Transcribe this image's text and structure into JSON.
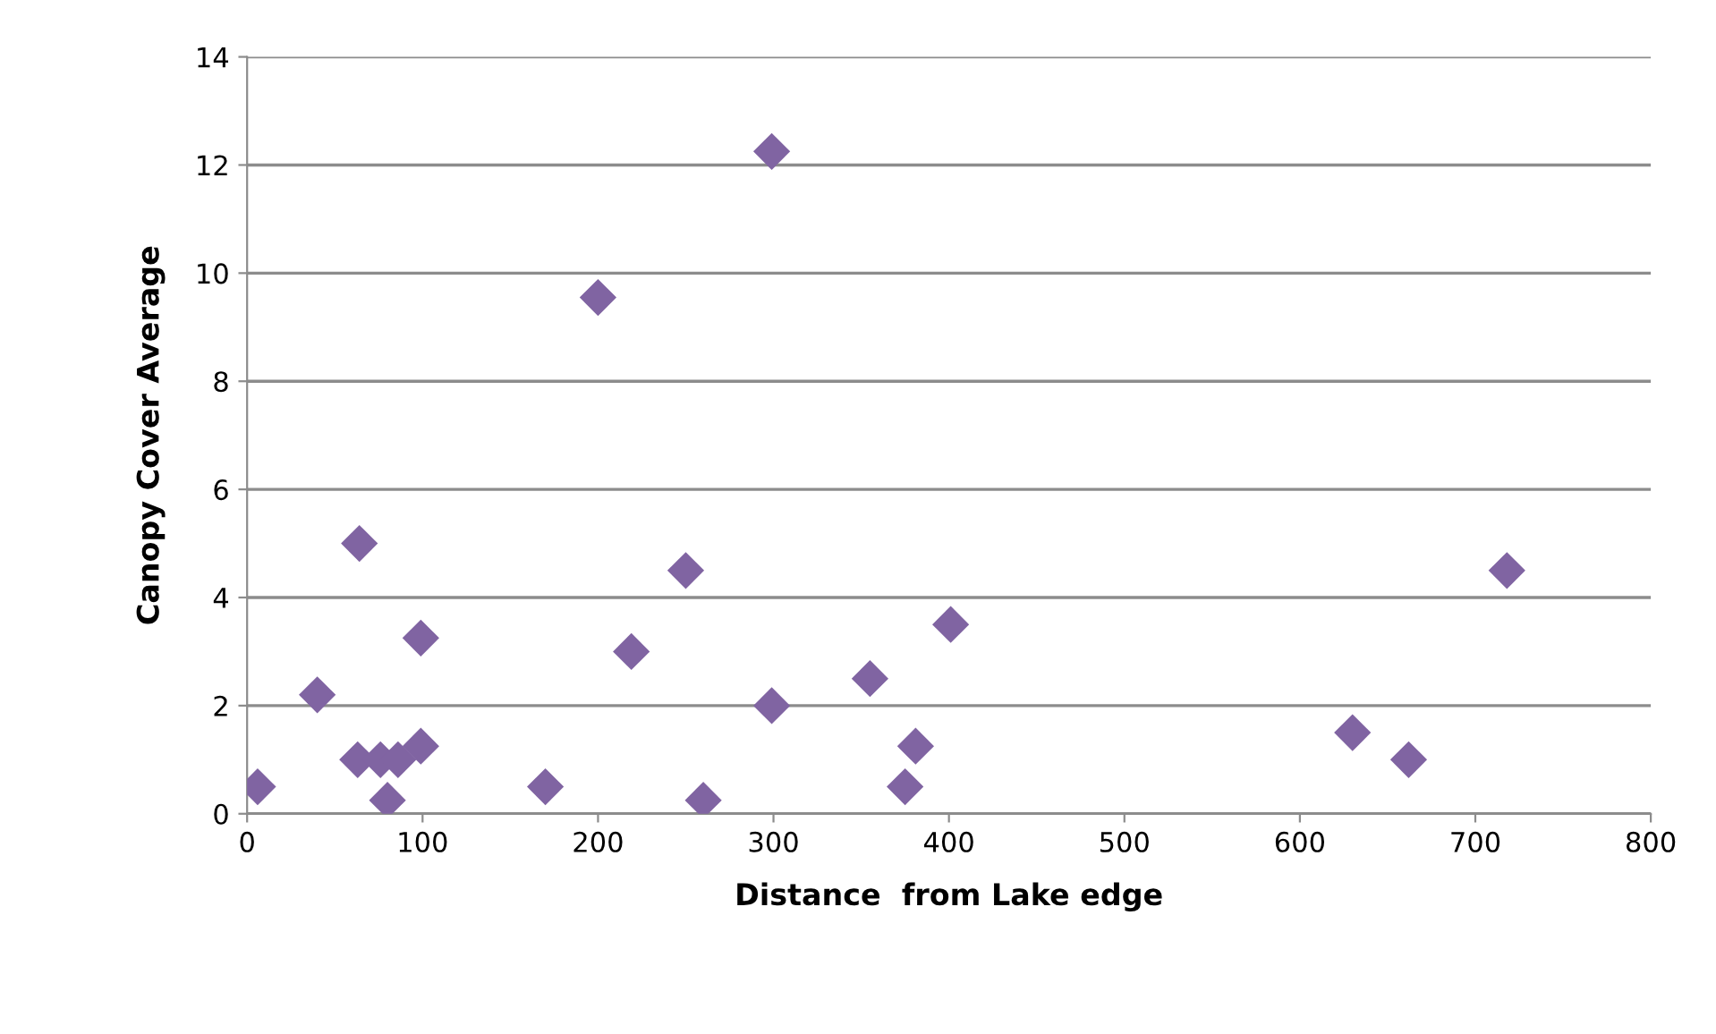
{
  "chart_data": {
    "type": "scatter",
    "xlabel": "Distance  from Lake edge",
    "ylabel": "Canopy Cover Average",
    "x": [
      6,
      40,
      64,
      63,
      76,
      80,
      86,
      99,
      99,
      170,
      200,
      219,
      250,
      260,
      299,
      299,
      355,
      375,
      381,
      401,
      630,
      662,
      718
    ],
    "series": [
      {
        "color": "#8064a2",
        "values": [
          0.5,
          2.2,
          5.0,
          1.0,
          1.0,
          0.25,
          1.0,
          3.25,
          1.25,
          0.5,
          9.55,
          3.0,
          4.5,
          0.25,
          12.25,
          2.0,
          2.5,
          0.5,
          1.25,
          3.5,
          1.5,
          1.0,
          4.5
        ]
      }
    ],
    "marker": "diamond",
    "grid": "y",
    "legend": false,
    "xlim": [
      0,
      800
    ],
    "xticks": [
      0,
      100,
      200,
      300,
      400,
      500,
      600,
      700,
      800
    ],
    "ylim": [
      0,
      14
    ],
    "yticks": [
      0,
      2,
      4,
      6,
      8,
      10,
      12,
      14
    ]
  }
}
